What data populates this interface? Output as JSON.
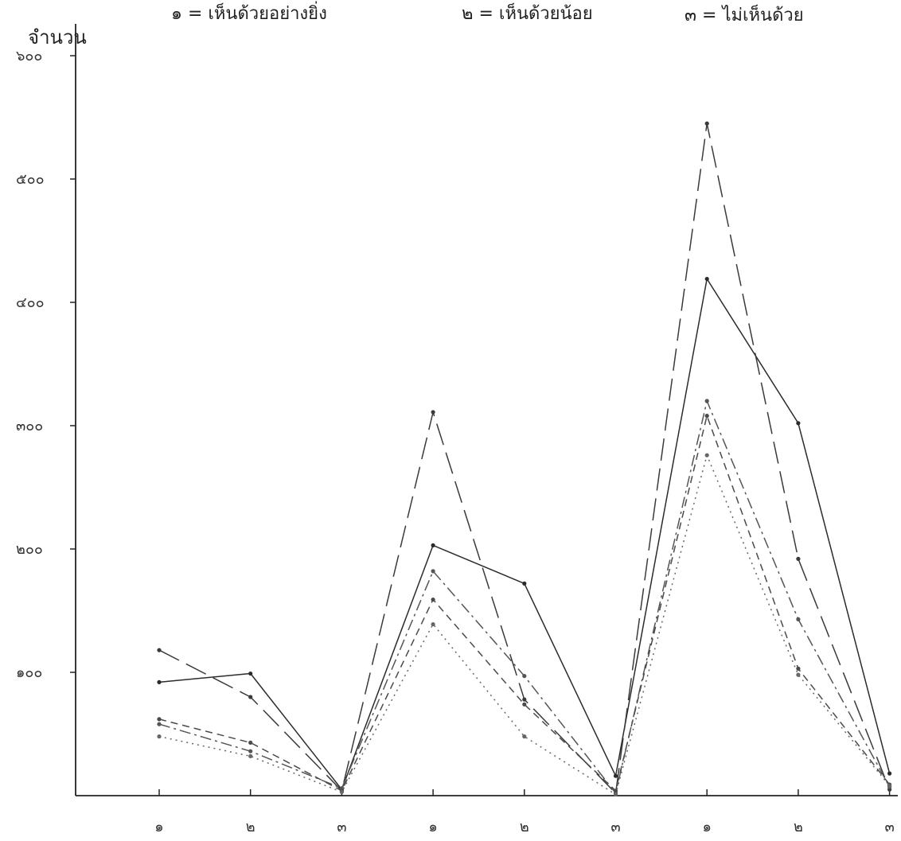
{
  "chart_data": {
    "type": "line",
    "title": "",
    "legend": {
      "placement": "top",
      "entries": [
        "๑ = เห็นด้วยอย่างยิ่ง",
        "๒ = เห็นด้วยน้อย",
        "๓ = ไม่เห็นด้วย"
      ]
    },
    "xlabel": "",
    "ylabel": "จำนวน",
    "ylim": [
      0,
      600
    ],
    "y_ticks": [
      {
        "value": 100,
        "label": "๑๐๐"
      },
      {
        "value": 200,
        "label": "๒๐๐"
      },
      {
        "value": 300,
        "label": "๓๐๐"
      },
      {
        "value": 400,
        "label": "๔๐๐"
      },
      {
        "value": 500,
        "label": "๕๐๐"
      },
      {
        "value": 600,
        "label": "๖๐๐"
      }
    ],
    "categories": [
      "๑",
      "๒",
      "๓",
      "๑",
      "๒",
      "๓",
      "๑",
      "๒",
      "๓"
    ],
    "grid": false,
    "series": [
      {
        "style": "solid",
        "color": "#2b2b2b",
        "values": [
          92,
          99,
          5,
          203,
          172,
          16,
          419,
          302,
          18
        ]
      },
      {
        "style": "long-dash",
        "color": "#3a3a3a",
        "values": [
          118,
          80,
          4,
          311,
          78,
          2,
          545,
          192,
          5
        ]
      },
      {
        "style": "dash-dot",
        "color": "#555555",
        "values": [
          58,
          36,
          6,
          182,
          97,
          2,
          320,
          143,
          7
        ]
      },
      {
        "style": "dash",
        "color": "#4a4a4a",
        "values": [
          62,
          43,
          4,
          159,
          74,
          4,
          308,
          103,
          9
        ]
      },
      {
        "style": "dotted",
        "color": "#666666",
        "values": [
          48,
          32,
          3,
          139,
          48,
          1,
          276,
          98,
          8
        ]
      }
    ]
  }
}
